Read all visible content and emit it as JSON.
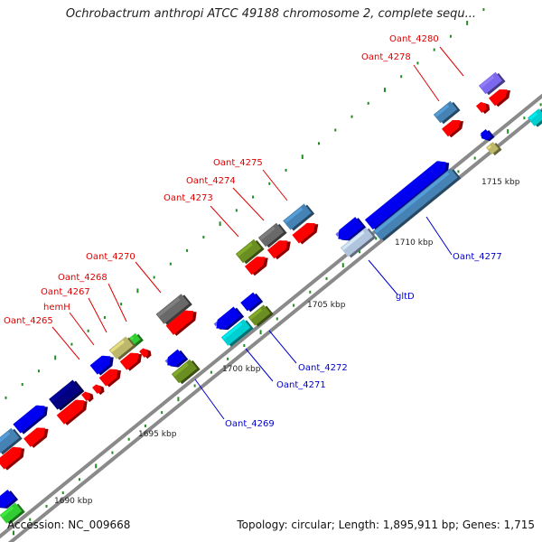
{
  "title": "Ochrobactrum anthropi ATCC 49188 chromosome 2, complete sequ...",
  "footer": {
    "accession": "Accession: NC_009668",
    "summary": "Topology: circular; Length: 1,895,911 bp; Genes: 1,715"
  },
  "colors": {
    "red": "#ff0000",
    "blue": "#0000ee",
    "navy": "#000080",
    "steelblue": "#4682b4",
    "olive": "#6b8e23",
    "gray": "#696969",
    "khaki": "#bdb76b",
    "cyan": "#00ced1",
    "purple": "#7b68ee",
    "lime": "#32cd32",
    "backbone": "#808080",
    "tick": "#228b22",
    "label_red": "#dd0000",
    "label_blue": "#0000cc"
  },
  "scale_labels": [
    "1690 kbp",
    "1695 kbp",
    "1700 kbp",
    "1705 kbp",
    "1710 kbp",
    "1715 kbp"
  ],
  "gene_labels_top": [
    "Oant_4280",
    "Oant_4278",
    "Oant_4275",
    "Oant_4274",
    "Oant_4273",
    "Oant_4270",
    "Oant_4268",
    "Oant_4267",
    "hemH",
    "Oant_4265"
  ],
  "gene_labels_bottom": [
    "Oant_4277",
    "gltD",
    "Oant_4272",
    "Oant_4271",
    "Oant_4269"
  ]
}
